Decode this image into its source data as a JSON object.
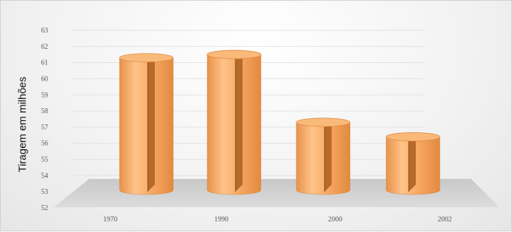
{
  "chart_data": {
    "type": "bar",
    "style": "3d-cylinder",
    "categories": [
      "1970",
      "1990",
      "2000",
      "2002"
    ],
    "values": [
      61,
      61.2,
      57,
      56.1
    ],
    "ylabel": "Tiragem em milhões",
    "xlabel": "",
    "ylim": [
      52,
      63
    ],
    "yticks": [
      "52",
      "53",
      "54",
      "55",
      "56",
      "57",
      "58",
      "59",
      "60",
      "61",
      "62",
      "63"
    ],
    "grid": true,
    "legend": "none",
    "colors": {
      "bar_light": "#FFC48A",
      "bar_mid": "#F5A35C",
      "bar_dark": "#C46A1E",
      "floor": "#d2d2d2"
    }
  }
}
